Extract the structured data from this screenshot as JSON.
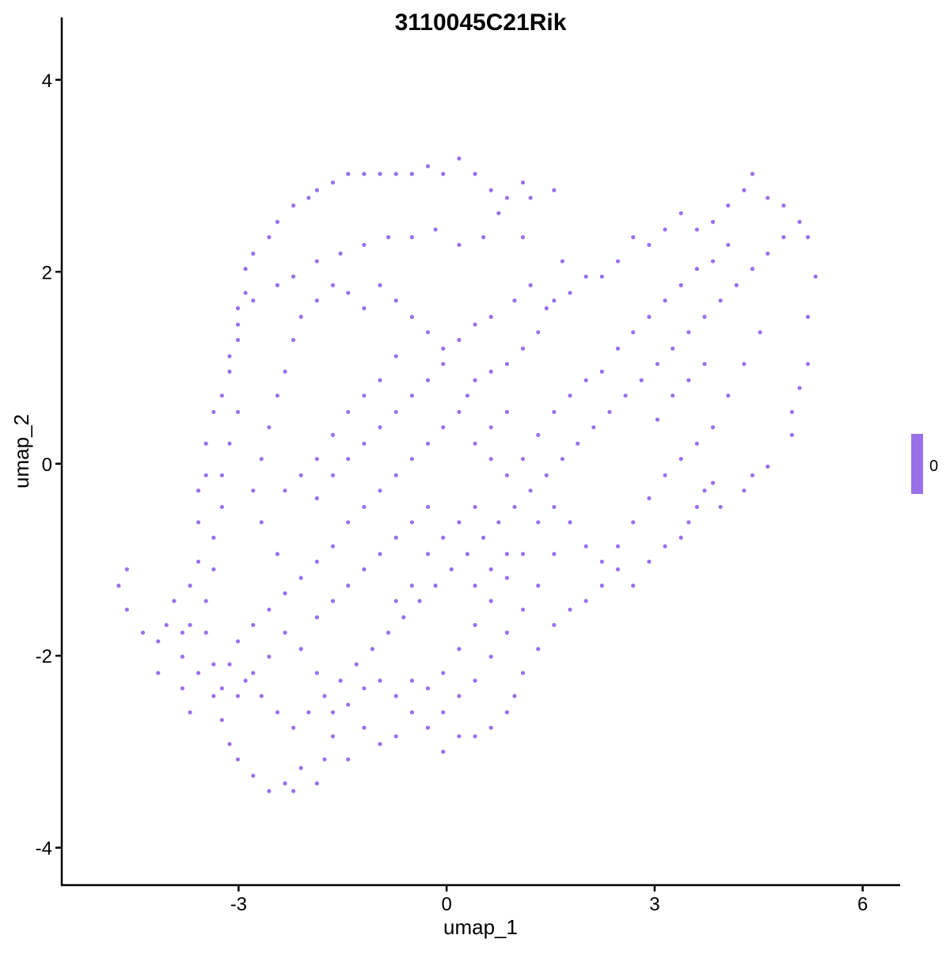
{
  "chart_data": {
    "type": "scatter",
    "title": "3110045C21Rik",
    "xlabel": "umap_1",
    "ylabel": "umap_2",
    "xlim": [
      -5.55,
      6.54
    ],
    "ylim": [
      -4.39,
      4.65
    ],
    "xticks": [
      -3,
      0,
      3,
      6
    ],
    "xtick_labels": [
      "-3",
      "0",
      "3",
      "6"
    ],
    "yticks": [
      -4,
      -2,
      0,
      2,
      4
    ],
    "ytick_labels": [
      "-4",
      "-2",
      "0",
      "2",
      "4"
    ],
    "grid": false,
    "point_color": "#9A70EA",
    "legend": {
      "placement": "right",
      "type": "colorbar",
      "labels": [
        "0"
      ],
      "color": "#9A70EA"
    },
    "points": [
      [
        -4.73,
        -1.27
      ],
      [
        -4.61,
        -1.1
      ],
      [
        -4.61,
        -1.52
      ],
      [
        -4.38,
        -1.76
      ],
      [
        -4.16,
        -2.18
      ],
      [
        -4.16,
        -1.85
      ],
      [
        -4.04,
        -1.68
      ],
      [
        -3.93,
        -1.43
      ],
      [
        -3.81,
        -2.01
      ],
      [
        -3.81,
        -2.34
      ],
      [
        -3.7,
        -2.59
      ],
      [
        -3.7,
        -1.27
      ],
      [
        -3.58,
        -1.02
      ],
      [
        -3.58,
        -0.61
      ],
      [
        -3.58,
        -0.28
      ],
      [
        -3.47,
        -0.12
      ],
      [
        -3.47,
        0.21
      ],
      [
        -3.36,
        0.54
      ],
      [
        -3.24,
        0.71
      ],
      [
        -3.13,
        0.96
      ],
      [
        -3.01,
        1.29
      ],
      [
        -3.01,
        1.62
      ],
      [
        -2.9,
        1.78
      ],
      [
        -2.9,
        2.03
      ],
      [
        -2.79,
        2.19
      ],
      [
        -2.56,
        2.36
      ],
      [
        -2.44,
        2.52
      ],
      [
        -2.21,
        2.69
      ],
      [
        -1.99,
        2.77
      ],
      [
        -1.87,
        2.85
      ],
      [
        -1.64,
        2.93
      ],
      [
        -1.42,
        3.02
      ],
      [
        -1.19,
        3.02
      ],
      [
        -0.96,
        3.02
      ],
      [
        -0.73,
        3.02
      ],
      [
        -0.5,
        3.02
      ],
      [
        -0.27,
        3.1
      ],
      [
        -0.05,
        3.02
      ],
      [
        0.18,
        3.18
      ],
      [
        0.41,
        3.02
      ],
      [
        0.64,
        2.85
      ],
      [
        0.87,
        2.77
      ],
      [
        1.1,
        2.93
      ],
      [
        1.21,
        2.77
      ],
      [
        1.55,
        2.85
      ],
      [
        1.1,
        2.36
      ],
      [
        0.75,
        2.61
      ],
      [
        0.53,
        2.36
      ],
      [
        0.18,
        2.28
      ],
      [
        -0.16,
        2.44
      ],
      [
        -0.5,
        2.36
      ],
      [
        -0.84,
        2.36
      ],
      [
        -1.19,
        2.28
      ],
      [
        -1.53,
        2.19
      ],
      [
        -1.87,
        2.11
      ],
      [
        -2.21,
        1.95
      ],
      [
        -2.44,
        1.86
      ],
      [
        -2.79,
        1.7
      ],
      [
        -3.01,
        1.45
      ],
      [
        -3.13,
        1.12
      ],
      [
        -3.01,
        0.54
      ],
      [
        -3.13,
        0.21
      ],
      [
        -3.24,
        -0.12
      ],
      [
        -3.24,
        -0.45
      ],
      [
        -3.36,
        -0.77
      ],
      [
        -3.36,
        -1.1
      ],
      [
        -3.47,
        -1.43
      ],
      [
        -3.47,
        -1.76
      ],
      [
        -3.36,
        -2.09
      ],
      [
        -3.36,
        -2.42
      ],
      [
        -3.24,
        -2.67
      ],
      [
        -3.13,
        -2.92
      ],
      [
        -3.01,
        -3.08
      ],
      [
        -2.79,
        -3.25
      ],
      [
        -2.56,
        -3.41
      ],
      [
        -2.33,
        -3.33
      ],
      [
        -2.21,
        -3.41
      ],
      [
        -2.1,
        -3.17
      ],
      [
        -1.87,
        -3.33
      ],
      [
        -1.76,
        -3.08
      ],
      [
        -1.64,
        -2.84
      ],
      [
        -1.42,
        -3.08
      ],
      [
        -1.19,
        -2.75
      ],
      [
        -0.96,
        -2.92
      ],
      [
        -0.73,
        -2.84
      ],
      [
        -0.5,
        -2.59
      ],
      [
        -0.27,
        -2.75
      ],
      [
        -0.05,
        -3.0
      ],
      [
        0.18,
        -2.84
      ],
      [
        0.41,
        -2.84
      ],
      [
        0.64,
        -2.75
      ],
      [
        0.87,
        -2.59
      ],
      [
        0.98,
        -2.42
      ],
      [
        1.1,
        -2.18
      ],
      [
        1.32,
        -1.93
      ],
      [
        1.55,
        -1.68
      ],
      [
        1.78,
        -1.52
      ],
      [
        2.01,
        -1.43
      ],
      [
        2.24,
        -1.27
      ],
      [
        2.47,
        -1.1
      ],
      [
        2.69,
        -1.27
      ],
      [
        2.92,
        -1.02
      ],
      [
        3.15,
        -0.86
      ],
      [
        3.38,
        -0.77
      ],
      [
        3.49,
        -0.61
      ],
      [
        3.61,
        -0.45
      ],
      [
        3.72,
        -0.28
      ],
      [
        3.84,
        -0.2
      ],
      [
        3.95,
        -0.45
      ],
      [
        4.29,
        -0.28
      ],
      [
        4.41,
        -0.12
      ],
      [
        4.63,
        -0.03
      ],
      [
        4.98,
        0.3
      ],
      [
        4.98,
        0.54
      ],
      [
        5.09,
        0.79
      ],
      [
        5.21,
        1.04
      ],
      [
        5.21,
        1.53
      ],
      [
        5.32,
        1.95
      ],
      [
        5.21,
        2.36
      ],
      [
        5.09,
        2.52
      ],
      [
        4.86,
        2.69
      ],
      [
        4.63,
        2.77
      ],
      [
        4.41,
        3.02
      ],
      [
        4.29,
        2.85
      ],
      [
        4.06,
        2.69
      ],
      [
        3.84,
        2.52
      ],
      [
        3.61,
        2.44
      ],
      [
        3.38,
        2.61
      ],
      [
        3.15,
        2.44
      ],
      [
        2.92,
        2.28
      ],
      [
        2.69,
        2.36
      ],
      [
        2.47,
        2.11
      ],
      [
        2.24,
        1.95
      ],
      [
        2.01,
        1.95
      ],
      [
        1.78,
        1.78
      ],
      [
        1.55,
        1.7
      ],
      [
        1.44,
        1.62
      ],
      [
        1.32,
        1.37
      ],
      [
        1.1,
        1.2
      ],
      [
        0.87,
        1.04
      ],
      [
        0.64,
        0.96
      ],
      [
        0.41,
        0.87
      ],
      [
        0.3,
        0.71
      ],
      [
        0.18,
        0.54
      ],
      [
        -0.05,
        0.38
      ],
      [
        -0.27,
        0.21
      ],
      [
        -0.5,
        0.05
      ],
      [
        -0.73,
        -0.12
      ],
      [
        -0.96,
        -0.28
      ],
      [
        -1.19,
        -0.45
      ],
      [
        -1.42,
        -0.61
      ],
      [
        -1.64,
        -0.86
      ],
      [
        -1.87,
        -1.02
      ],
      [
        -2.1,
        -1.19
      ],
      [
        -2.33,
        -1.35
      ],
      [
        -2.56,
        -1.52
      ],
      [
        -2.79,
        -1.68
      ],
      [
        -3.01,
        -1.85
      ],
      [
        -3.13,
        -2.09
      ],
      [
        -2.9,
        -2.26
      ],
      [
        -2.67,
        -2.42
      ],
      [
        -2.44,
        -2.59
      ],
      [
        -2.21,
        -2.75
      ],
      [
        -1.99,
        -2.59
      ],
      [
        -1.76,
        -2.42
      ],
      [
        -1.53,
        -2.26
      ],
      [
        -1.3,
        -2.09
      ],
      [
        -1.07,
        -1.93
      ],
      [
        -0.84,
        -1.76
      ],
      [
        -0.62,
        -1.6
      ],
      [
        -0.39,
        -1.43
      ],
      [
        -0.16,
        -1.27
      ],
      [
        0.07,
        -1.1
      ],
      [
        0.3,
        -0.94
      ],
      [
        0.53,
        -0.77
      ],
      [
        0.75,
        -0.61
      ],
      [
        0.98,
        -0.45
      ],
      [
        1.21,
        -0.28
      ],
      [
        1.44,
        -0.12
      ],
      [
        1.67,
        0.05
      ],
      [
        1.89,
        0.21
      ],
      [
        2.12,
        0.38
      ],
      [
        2.35,
        0.54
      ],
      [
        2.58,
        0.71
      ],
      [
        2.81,
        0.87
      ],
      [
        3.04,
        1.04
      ],
      [
        3.26,
        1.2
      ],
      [
        3.49,
        1.37
      ],
      [
        3.72,
        1.53
      ],
      [
        3.95,
        1.7
      ],
      [
        4.18,
        1.86
      ],
      [
        4.41,
        2.03
      ],
      [
        4.63,
        2.19
      ],
      [
        4.86,
        2.36
      ],
      [
        4.52,
        1.37
      ],
      [
        4.29,
        1.04
      ],
      [
        4.06,
        0.71
      ],
      [
        3.84,
        0.38
      ],
      [
        3.61,
        0.21
      ],
      [
        3.38,
        0.05
      ],
      [
        3.15,
        -0.12
      ],
      [
        2.92,
        -0.36
      ],
      [
        2.69,
        -0.61
      ],
      [
        2.47,
        -0.86
      ],
      [
        2.24,
        -1.02
      ],
      [
        2.01,
        -0.86
      ],
      [
        1.78,
        -0.61
      ],
      [
        1.55,
        -0.45
      ],
      [
        1.32,
        -0.61
      ],
      [
        1.1,
        -0.94
      ],
      [
        0.87,
        -1.19
      ],
      [
        0.64,
        -1.43
      ],
      [
        0.41,
        -1.68
      ],
      [
        0.18,
        -1.93
      ],
      [
        -0.05,
        -2.18
      ],
      [
        -0.27,
        -2.34
      ],
      [
        -0.5,
        -2.26
      ],
      [
        -0.73,
        -2.42
      ],
      [
        -0.96,
        -2.26
      ],
      [
        -1.19,
        -2.34
      ],
      [
        -1.42,
        -2.51
      ],
      [
        -1.64,
        -2.59
      ],
      [
        -1.87,
        -2.18
      ],
      [
        -2.1,
        -1.93
      ],
      [
        -2.33,
        -1.76
      ],
      [
        -2.56,
        -2.01
      ],
      [
        -2.79,
        -2.18
      ],
      [
        -3.01,
        -2.42
      ],
      [
        -3.24,
        -2.34
      ],
      [
        -3.58,
        -2.18
      ],
      [
        -3.81,
        -1.76
      ],
      [
        -3.7,
        -1.68
      ],
      [
        -2.44,
        -0.94
      ],
      [
        -2.67,
        -0.61
      ],
      [
        -2.79,
        -0.28
      ],
      [
        -2.67,
        0.05
      ],
      [
        -2.56,
        0.38
      ],
      [
        -2.44,
        0.71
      ],
      [
        -2.33,
        0.96
      ],
      [
        -2.21,
        1.29
      ],
      [
        -2.1,
        1.53
      ],
      [
        -1.87,
        1.7
      ],
      [
        -1.64,
        1.86
      ],
      [
        -1.42,
        1.78
      ],
      [
        -1.19,
        1.62
      ],
      [
        -0.96,
        1.86
      ],
      [
        -0.73,
        1.7
      ],
      [
        -0.5,
        1.53
      ],
      [
        -0.27,
        1.37
      ],
      [
        -0.05,
        1.2
      ],
      [
        0.18,
        1.29
      ],
      [
        0.41,
        1.45
      ],
      [
        0.64,
        1.53
      ],
      [
        0.98,
        1.7
      ],
      [
        1.21,
        1.86
      ],
      [
        1.67,
        2.11
      ],
      [
        -0.73,
        1.12
      ],
      [
        -0.96,
        0.87
      ],
      [
        -1.19,
        0.71
      ],
      [
        -1.42,
        0.54
      ],
      [
        -1.64,
        0.3
      ],
      [
        -1.87,
        0.05
      ],
      [
        -2.1,
        -0.12
      ],
      [
        -2.33,
        -0.28
      ],
      [
        -1.87,
        -0.36
      ],
      [
        -1.64,
        -0.12
      ],
      [
        -1.42,
        0.05
      ],
      [
        -1.19,
        0.21
      ],
      [
        -0.96,
        0.38
      ],
      [
        -0.73,
        0.54
      ],
      [
        -0.5,
        0.71
      ],
      [
        -0.27,
        0.87
      ],
      [
        -0.05,
        1.04
      ],
      [
        0.41,
        0.21
      ],
      [
        0.64,
        0.05
      ],
      [
        0.87,
        -0.12
      ],
      [
        1.1,
        0.05
      ],
      [
        1.32,
        0.3
      ],
      [
        1.55,
        0.54
      ],
      [
        1.78,
        0.71
      ],
      [
        2.01,
        0.87
      ],
      [
        2.24,
        0.96
      ],
      [
        2.47,
        1.2
      ],
      [
        2.69,
        1.37
      ],
      [
        2.92,
        1.53
      ],
      [
        3.15,
        1.7
      ],
      [
        3.38,
        1.86
      ],
      [
        3.61,
        2.03
      ],
      [
        3.84,
        2.11
      ],
      [
        4.06,
        2.28
      ],
      [
        3.26,
        0.71
      ],
      [
        3.04,
        0.46
      ],
      [
        3.49,
        0.87
      ],
      [
        3.72,
        1.04
      ],
      [
        0.87,
        0.54
      ],
      [
        0.64,
        0.38
      ],
      [
        -0.27,
        -0.45
      ],
      [
        -0.5,
        -0.61
      ],
      [
        -0.73,
        -0.77
      ],
      [
        -0.96,
        -0.94
      ],
      [
        -1.19,
        -1.1
      ],
      [
        -1.42,
        -1.27
      ],
      [
        -1.64,
        -1.43
      ],
      [
        -1.87,
        -1.6
      ],
      [
        -0.27,
        -0.94
      ],
      [
        -0.05,
        -0.77
      ],
      [
        0.18,
        -0.61
      ],
      [
        0.41,
        -0.45
      ],
      [
        -0.5,
        -1.27
      ],
      [
        -0.73,
        -1.43
      ],
      [
        0.41,
        -1.27
      ],
      [
        0.64,
        -1.1
      ],
      [
        0.87,
        -0.94
      ],
      [
        1.55,
        -0.94
      ],
      [
        1.32,
        -1.27
      ],
      [
        1.1,
        -1.52
      ],
      [
        0.87,
        -1.76
      ],
      [
        0.64,
        -2.01
      ],
      [
        0.41,
        -2.26
      ],
      [
        0.18,
        -2.42
      ],
      [
        -0.05,
        -2.59
      ]
    ]
  }
}
